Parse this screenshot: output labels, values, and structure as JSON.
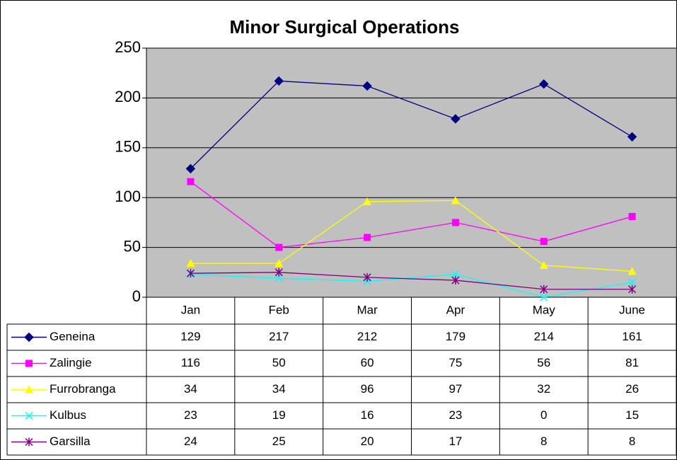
{
  "chart_data": {
    "type": "line",
    "title": "Minor Surgical Operations",
    "categories": [
      "Jan",
      "Feb",
      "Mar",
      "Apr",
      "May",
      "June"
    ],
    "ylim": [
      0,
      250
    ],
    "yticks": [
      0,
      50,
      100,
      150,
      200,
      250
    ],
    "grid": true,
    "series": [
      {
        "name": "Geneina",
        "color": "#000080",
        "marker": "diamond",
        "values": [
          129,
          217,
          212,
          179,
          214,
          161
        ]
      },
      {
        "name": "Zalingie",
        "color": "#FF00FF",
        "marker": "square",
        "values": [
          116,
          50,
          60,
          75,
          56,
          81
        ]
      },
      {
        "name": "Furrobranga",
        "color": "#FFFF00",
        "marker": "triangle",
        "values": [
          34,
          34,
          96,
          97,
          32,
          26
        ]
      },
      {
        "name": "Kulbus",
        "color": "#00FFFF",
        "marker": "x",
        "values": [
          23,
          19,
          16,
          23,
          0,
          15
        ]
      },
      {
        "name": "Garsilla",
        "color": "#800080",
        "marker": "star",
        "values": [
          24,
          25,
          20,
          17,
          8,
          8
        ]
      }
    ]
  }
}
